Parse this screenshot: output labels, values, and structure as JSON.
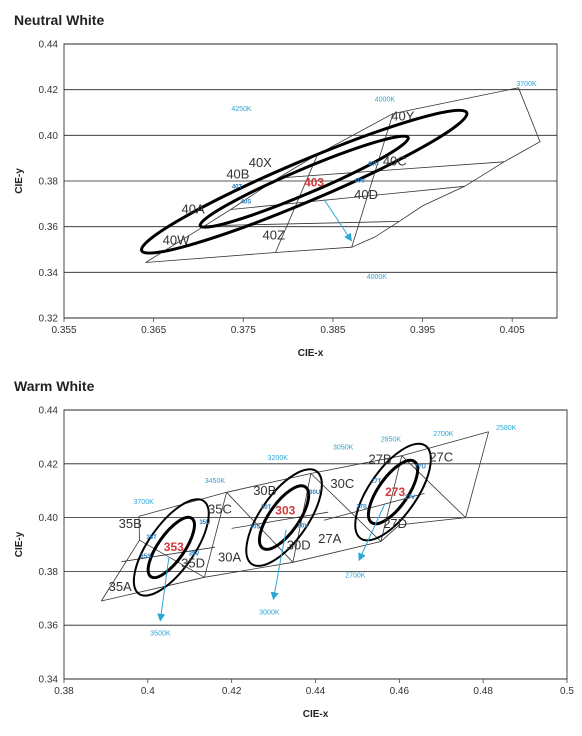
{
  "panels": [
    {
      "title": "Neutral White"
    },
    {
      "title": "Warm White"
    }
  ],
  "colors": {
    "cct": "#2aa6d6",
    "sub": "#2a7fc0",
    "center": "#d03a3a",
    "grid": "#222222",
    "ellipse": "#000000"
  },
  "chart_data": [
    {
      "type": "scatter",
      "title": "Neutral White",
      "xlabel": "CIE-x",
      "ylabel": "CIE-y",
      "xlim": [
        0.355,
        0.41
      ],
      "ylim": [
        0.32,
        0.44
      ],
      "x_ticks": [
        "0.355",
        "0.365",
        "0.375",
        "0.385",
        "0.395",
        "0.405"
      ],
      "y_ticks": [
        "0.32",
        "0.34",
        "0.36",
        "0.38",
        "0.40",
        "0.42",
        "0.44"
      ],
      "grid": "horizontal",
      "bin_lines": [
        {
          "points": [
            [
              0.3641,
              0.3443
            ],
            [
              0.3707,
              0.3604
            ],
            [
              0.3736,
              0.3675
            ],
            [
              0.3789,
              0.3813
            ],
            [
              0.3833,
              0.3917
            ],
            [
              0.3917,
              0.4095
            ],
            [
              0.4057,
              0.4208
            ]
          ]
        },
        {
          "points": [
            [
              0.3641,
              0.3443
            ],
            [
              0.3786,
              0.3487
            ],
            [
              0.3871,
              0.351
            ],
            [
              0.3897,
              0.3555
            ],
            [
              0.3924,
              0.3623
            ],
            [
              0.395,
              0.3691
            ],
            [
              0.3997,
              0.3777
            ],
            [
              0.4041,
              0.3884
            ],
            [
              0.4081,
              0.3972
            ],
            [
              0.4057,
              0.4208
            ]
          ]
        },
        {
          "points": [
            [
              0.3736,
              0.3675
            ],
            [
              0.3997,
              0.3777
            ]
          ]
        },
        {
          "points": [
            [
              0.3707,
              0.3604
            ],
            [
              0.3924,
              0.3623
            ]
          ]
        },
        {
          "points": [
            [
              0.3786,
              0.3487
            ],
            [
              0.3833,
              0.3917
            ]
          ]
        },
        {
          "points": [
            [
              0.3789,
              0.3813
            ],
            [
              0.4041,
              0.3884
            ]
          ]
        },
        {
          "points": [
            [
              0.3871,
              0.351
            ],
            [
              0.3917,
              0.4095
            ]
          ]
        }
      ],
      "ellipses": [
        {
          "cx": 0.3818,
          "cy": 0.3797,
          "rx": 0.0126,
          "ry": 0.0054,
          "angle": 23,
          "weight": 3
        },
        {
          "cx": 0.3818,
          "cy": 0.3797,
          "rx": 0.0197,
          "ry": 0.0088,
          "angle": 23,
          "weight": 3
        }
      ],
      "bin_labels": [
        {
          "text": "40X",
          "x": 0.3769,
          "y": 0.3862
        },
        {
          "text": "40Y",
          "x": 0.3928,
          "y": 0.4066
        },
        {
          "text": "40B",
          "x": 0.3744,
          "y": 0.3812
        },
        {
          "text": "40C",
          "x": 0.3919,
          "y": 0.3868
        },
        {
          "text": "40A",
          "x": 0.3694,
          "y": 0.3658
        },
        {
          "text": "40D",
          "x": 0.3887,
          "y": 0.3722
        },
        {
          "text": "40W",
          "x": 0.3675,
          "y": 0.3522
        },
        {
          "text": "40Z",
          "x": 0.3784,
          "y": 0.3544
        }
      ],
      "sub_labels": [
        {
          "text": "40U",
          "x": 0.3895,
          "y": 0.3868
        },
        {
          "text": "40T",
          "x": 0.3743,
          "y": 0.3768
        },
        {
          "text": "40V",
          "x": 0.388,
          "y": 0.3794
        },
        {
          "text": "40S",
          "x": 0.3753,
          "y": 0.3701
        }
      ],
      "center_labels": [
        {
          "text": "403",
          "x": 0.3829,
          "y": 0.3793
        }
      ],
      "cct_labels": [
        {
          "text": "4250K",
          "x": 0.3748,
          "y": 0.4106
        },
        {
          "text": "4000K",
          "x": 0.3908,
          "y": 0.4148
        },
        {
          "text": "3700K",
          "x": 0.4066,
          "y": 0.4215
        },
        {
          "text": "4000K",
          "x": 0.3899,
          "y": 0.3371
        }
      ],
      "cct_arrows": [
        {
          "from": [
            0.384,
            0.372
          ],
          "to": [
            0.387,
            0.3542
          ]
        }
      ]
    },
    {
      "type": "scatter",
      "title": "Warm White",
      "xlabel": "CIE-x",
      "ylabel": "CIE-y",
      "xlim": [
        0.38,
        0.5
      ],
      "ylim": [
        0.34,
        0.44
      ],
      "x_ticks": [
        "0.38",
        "0.4",
        "0.42",
        "0.44",
        "0.46",
        "0.48",
        "0.5"
      ],
      "y_ticks": [
        "0.34",
        "0.36",
        "0.38",
        "0.40",
        "0.42",
        "0.44"
      ],
      "grid": "horizontal",
      "bin_lines": [
        {
          "points": [
            [
              0.3889,
              0.369
            ],
            [
              0.398,
              0.3916
            ],
            [
              0.3979,
              0.4005
            ],
            [
              0.4188,
              0.4094
            ],
            [
              0.4389,
              0.4164
            ],
            [
              0.4606,
              0.423
            ],
            [
              0.4813,
              0.4319
            ]
          ]
        },
        {
          "points": [
            [
              0.3889,
              0.369
            ],
            [
              0.4135,
              0.3778
            ],
            [
              0.4346,
              0.3834
            ],
            [
              0.4556,
              0.3911
            ],
            [
              0.46,
              0.3973
            ],
            [
              0.4758,
              0.4
            ],
            [
              0.4813,
              0.4319
            ]
          ]
        },
        {
          "points": [
            [
              0.3937,
              0.3836
            ],
            [
              0.416,
              0.389
            ]
          ]
        },
        {
          "points": [
            [
              0.398,
              0.3916
            ],
            [
              0.4135,
              0.3778
            ]
          ]
        },
        {
          "points": [
            [
              0.4188,
              0.4094
            ],
            [
              0.4135,
              0.3778
            ]
          ]
        },
        {
          "points": [
            [
              0.4188,
              0.4094
            ],
            [
              0.4346,
              0.3834
            ]
          ]
        },
        {
          "points": [
            [
              0.4389,
              0.4164
            ],
            [
              0.4346,
              0.3834
            ]
          ]
        },
        {
          "points": [
            [
              0.4389,
              0.4164
            ],
            [
              0.4556,
              0.3911
            ]
          ]
        },
        {
          "points": [
            [
              0.4606,
              0.423
            ],
            [
              0.4556,
              0.3911
            ]
          ]
        },
        {
          "points": [
            [
              0.4606,
              0.423
            ],
            [
              0.4758,
              0.4
            ]
          ]
        },
        {
          "points": [
            [
              0.42,
              0.396
            ],
            [
              0.443,
              0.402
            ]
          ]
        },
        {
          "points": [
            [
              0.442,
              0.399
            ],
            [
              0.466,
              0.409
            ]
          ]
        }
      ],
      "ellipses": [
        {
          "cx": 0.4056,
          "cy": 0.3889,
          "rx": 0.0085,
          "ry": 0.0049,
          "angle": 55,
          "weight": 3
        },
        {
          "cx": 0.4056,
          "cy": 0.3889,
          "rx": 0.0135,
          "ry": 0.0085,
          "angle": 55,
          "weight": 2
        },
        {
          "cx": 0.4325,
          "cy": 0.4,
          "rx": 0.0089,
          "ry": 0.0055,
          "angle": 55,
          "weight": 3
        },
        {
          "cx": 0.4325,
          "cy": 0.4,
          "rx": 0.0135,
          "ry": 0.0088,
          "angle": 55,
          "weight": 2
        },
        {
          "cx": 0.4585,
          "cy": 0.4095,
          "rx": 0.0089,
          "ry": 0.0055,
          "angle": 55,
          "weight": 3
        },
        {
          "cx": 0.4585,
          "cy": 0.4095,
          "rx": 0.0135,
          "ry": 0.0088,
          "angle": 55,
          "weight": 2
        }
      ],
      "bin_labels": [
        {
          "text": "35B",
          "x": 0.3958,
          "y": 0.3962
        },
        {
          "text": "35C",
          "x": 0.4172,
          "y": 0.4015
        },
        {
          "text": "35A",
          "x": 0.3934,
          "y": 0.3727
        },
        {
          "text": "35D",
          "x": 0.4108,
          "y": 0.3814
        },
        {
          "text": "30B",
          "x": 0.4279,
          "y": 0.4084
        },
        {
          "text": "30C",
          "x": 0.4464,
          "y": 0.411
        },
        {
          "text": "30A",
          "x": 0.4195,
          "y": 0.3837
        },
        {
          "text": "30D",
          "x": 0.436,
          "y": 0.3882
        },
        {
          "text": "27B",
          "x": 0.4554,
          "y": 0.4202
        },
        {
          "text": "27C",
          "x": 0.47,
          "y": 0.4209
        },
        {
          "text": "27A",
          "x": 0.4434,
          "y": 0.3905
        },
        {
          "text": "27D",
          "x": 0.459,
          "y": 0.3961
        }
      ],
      "sub_labels": [
        {
          "text": "35U",
          "x": 0.4136,
          "y": 0.3976
        },
        {
          "text": "35T",
          "x": 0.4009,
          "y": 0.392
        },
        {
          "text": "35V",
          "x": 0.411,
          "y": 0.386
        },
        {
          "text": "35S",
          "x": 0.3995,
          "y": 0.385
        },
        {
          "text": "30U",
          "x": 0.4398,
          "y": 0.4088
        },
        {
          "text": "30T",
          "x": 0.4282,
          "y": 0.4032
        },
        {
          "text": "30V",
          "x": 0.437,
          "y": 0.3964
        },
        {
          "text": "30S",
          "x": 0.4256,
          "y": 0.396
        },
        {
          "text": "27U",
          "x": 0.465,
          "y": 0.4183
        },
        {
          "text": "27T",
          "x": 0.4545,
          "y": 0.4128
        },
        {
          "text": "27V",
          "x": 0.4625,
          "y": 0.407
        },
        {
          "text": "27S",
          "x": 0.451,
          "y": 0.4034
        }
      ],
      "center_labels": [
        {
          "text": "353",
          "x": 0.4062,
          "y": 0.3891
        },
        {
          "text": "303",
          "x": 0.4328,
          "y": 0.4027
        },
        {
          "text": "273",
          "x": 0.459,
          "y": 0.4095
        }
      ],
      "cct_labels": [
        {
          "text": "3700K",
          "x": 0.399,
          "y": 0.4051
        },
        {
          "text": "3450K",
          "x": 0.416,
          "y": 0.4128
        },
        {
          "text": "3200K",
          "x": 0.431,
          "y": 0.4214
        },
        {
          "text": "3050K",
          "x": 0.4466,
          "y": 0.4253
        },
        {
          "text": "2850K",
          "x": 0.458,
          "y": 0.4283
        },
        {
          "text": "2700K",
          "x": 0.4705,
          "y": 0.4303
        },
        {
          "text": "2580K",
          "x": 0.4855,
          "y": 0.4326
        },
        {
          "text": "3500K",
          "x": 0.403,
          "y": 0.3561
        },
        {
          "text": "3000K",
          "x": 0.429,
          "y": 0.3639
        },
        {
          "text": "2700K",
          "x": 0.4495,
          "y": 0.3777
        }
      ],
      "cct_arrows": [
        {
          "from": [
            0.405,
            0.385
          ],
          "to": [
            0.403,
            0.362
          ]
        },
        {
          "from": [
            0.433,
            0.3955
          ],
          "to": [
            0.43,
            0.37
          ]
        },
        {
          "from": [
            0.4565,
            0.405
          ],
          "to": [
            0.4505,
            0.3845
          ]
        }
      ]
    }
  ]
}
